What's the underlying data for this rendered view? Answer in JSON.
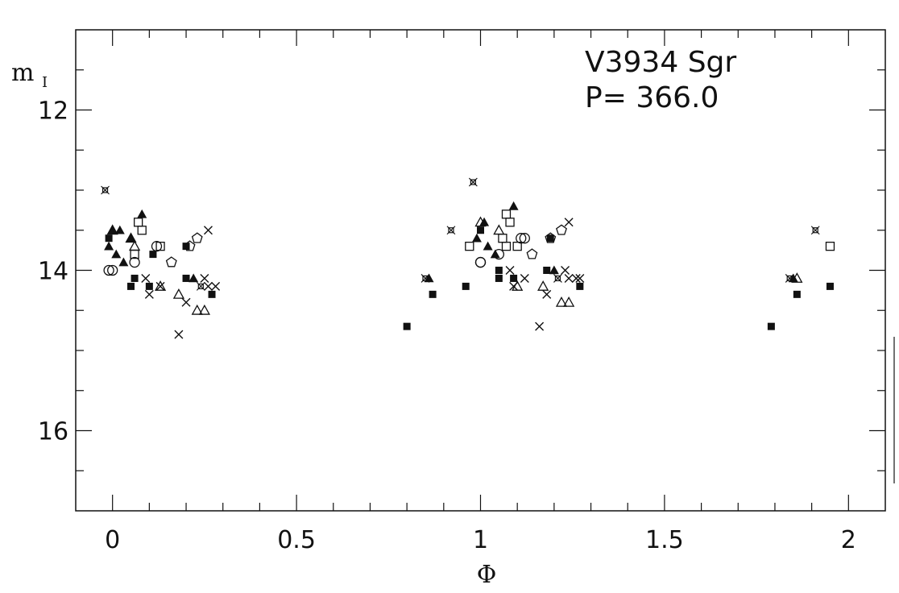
{
  "chart_data": {
    "type": "scatter",
    "title": "",
    "annotations": [
      "V3934 Sgr",
      "P= 366.0"
    ],
    "xlabel": "Φ",
    "ylabel": "m",
    "ylabel_subscript": "I",
    "xlim": [
      -0.1,
      2.1
    ],
    "ylim": [
      17.0,
      11.0
    ],
    "y_inverted": true,
    "grid": false,
    "x_ticks": [
      0,
      0.5,
      1,
      1.5,
      2
    ],
    "x_tick_labels": [
      "0",
      "0.5",
      "1",
      "1.5",
      "2"
    ],
    "y_ticks": [
      12,
      14,
      16
    ],
    "y_tick_labels": [
      "12",
      "14",
      "16"
    ],
    "marker_color": "#111111",
    "series": [
      {
        "marker": "filled-triangle",
        "points": [
          [
            -0.01,
            13.7
          ],
          [
            0.0,
            13.5
          ],
          [
            0.01,
            13.8
          ],
          [
            0.02,
            13.5
          ],
          [
            0.03,
            13.9
          ],
          [
            0.05,
            13.6
          ],
          [
            0.08,
            13.3
          ],
          [
            0.22,
            14.1
          ],
          [
            0.86,
            14.1
          ],
          [
            0.99,
            13.6
          ],
          [
            1.01,
            13.4
          ],
          [
            1.02,
            13.7
          ],
          [
            1.04,
            13.8
          ],
          [
            1.09,
            13.2
          ],
          [
            1.2,
            14.0
          ],
          [
            1.85,
            14.1
          ]
        ]
      },
      {
        "marker": "filled-square",
        "points": [
          [
            -0.01,
            13.6
          ],
          [
            0.05,
            14.2
          ],
          [
            0.06,
            14.1
          ],
          [
            0.1,
            14.2
          ],
          [
            0.11,
            13.8
          ],
          [
            0.2,
            13.7
          ],
          [
            0.2,
            14.1
          ],
          [
            0.27,
            14.3
          ],
          [
            0.8,
            14.7
          ],
          [
            0.87,
            14.3
          ],
          [
            0.96,
            14.2
          ],
          [
            1.0,
            13.5
          ],
          [
            1.05,
            14.1
          ],
          [
            1.05,
            14.0
          ],
          [
            1.09,
            14.1
          ],
          [
            1.19,
            13.6
          ],
          [
            1.18,
            14.0
          ],
          [
            1.27,
            14.2
          ],
          [
            1.79,
            14.7
          ],
          [
            1.86,
            14.3
          ],
          [
            1.95,
            14.2
          ]
        ]
      },
      {
        "marker": "open-square",
        "points": [
          [
            0.07,
            13.4
          ],
          [
            0.08,
            13.5
          ],
          [
            0.06,
            13.8
          ],
          [
            0.13,
            13.7
          ],
          [
            0.97,
            13.7
          ],
          [
            1.06,
            13.6
          ],
          [
            1.07,
            13.7
          ],
          [
            1.07,
            13.3
          ],
          [
            1.08,
            13.4
          ],
          [
            1.1,
            13.7
          ],
          [
            1.95,
            13.7
          ]
        ]
      },
      {
        "marker": "open-triangle",
        "points": [
          [
            0.0,
            13.5
          ],
          [
            0.05,
            13.6
          ],
          [
            0.06,
            13.7
          ],
          [
            0.13,
            14.2
          ],
          [
            0.18,
            14.3
          ],
          [
            0.23,
            14.5
          ],
          [
            0.25,
            14.5
          ],
          [
            1.0,
            13.4
          ],
          [
            1.05,
            13.5
          ],
          [
            1.1,
            14.2
          ],
          [
            1.17,
            14.2
          ],
          [
            1.22,
            14.4
          ],
          [
            1.24,
            14.4
          ],
          [
            1.86,
            14.1
          ]
        ]
      },
      {
        "marker": "open-circle",
        "points": [
          [
            -0.01,
            14.0
          ],
          [
            0.0,
            14.0
          ],
          [
            0.06,
            13.9
          ],
          [
            0.12,
            13.7
          ],
          [
            1.0,
            13.9
          ],
          [
            1.0,
            13.9
          ],
          [
            1.05,
            13.8
          ],
          [
            1.11,
            13.6
          ],
          [
            1.12,
            13.6
          ]
        ]
      },
      {
        "marker": "open-pentagon",
        "points": [
          [
            0.16,
            13.9
          ],
          [
            0.21,
            13.7
          ],
          [
            0.23,
            13.6
          ],
          [
            1.14,
            13.8
          ],
          [
            1.19,
            13.6
          ],
          [
            1.22,
            13.5
          ]
        ]
      },
      {
        "marker": "cross",
        "points": [
          [
            0.09,
            14.1
          ],
          [
            0.1,
            14.3
          ],
          [
            0.13,
            14.2
          ],
          [
            0.18,
            14.8
          ],
          [
            0.2,
            14.4
          ],
          [
            0.25,
            14.1
          ],
          [
            0.26,
            14.2
          ],
          [
            0.26,
            13.5
          ],
          [
            0.28,
            14.2
          ],
          [
            1.08,
            14.0
          ],
          [
            1.09,
            14.2
          ],
          [
            1.12,
            14.1
          ],
          [
            1.16,
            14.7
          ],
          [
            1.18,
            14.3
          ],
          [
            1.23,
            14.0
          ],
          [
            1.24,
            14.1
          ],
          [
            1.24,
            13.4
          ],
          [
            1.26,
            14.1
          ],
          [
            1.27,
            14.1
          ]
        ]
      },
      {
        "marker": "open-star",
        "points": [
          [
            -0.02,
            13.0
          ],
          [
            0.24,
            14.2
          ],
          [
            0.85,
            14.1
          ],
          [
            0.92,
            13.5
          ],
          [
            0.98,
            12.9
          ],
          [
            1.21,
            14.1
          ],
          [
            1.84,
            14.1
          ],
          [
            1.91,
            13.5
          ]
        ]
      }
    ]
  }
}
